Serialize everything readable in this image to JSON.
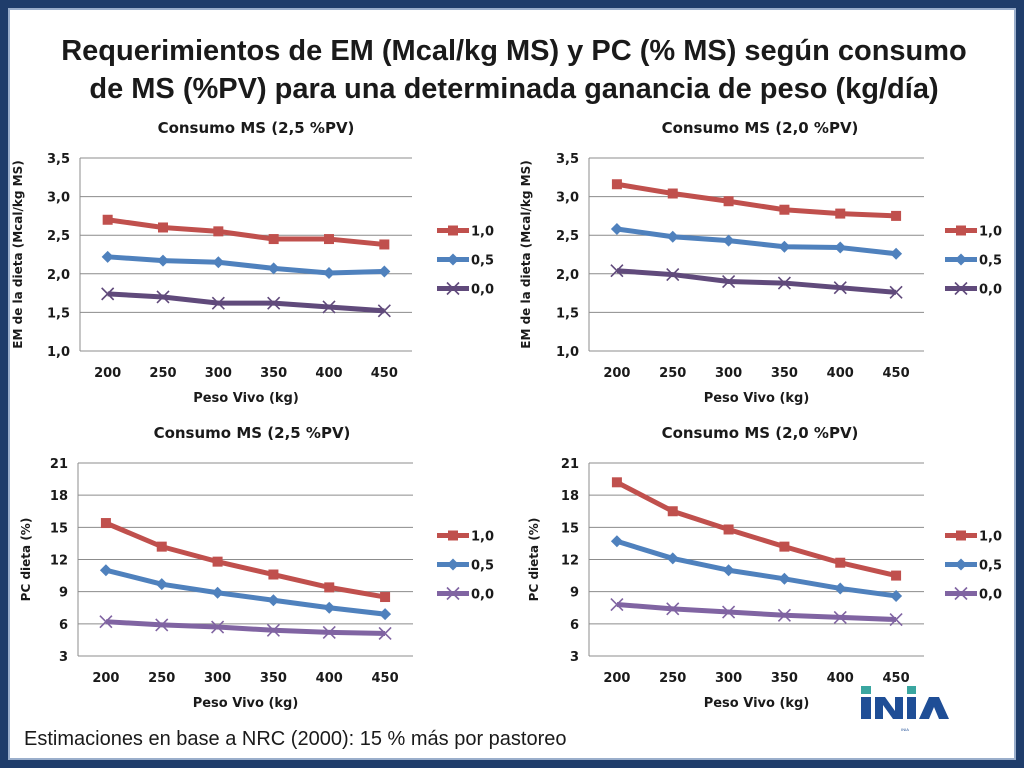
{
  "slide": {
    "title_line1": "Requerimientos de EM (Mcal/kg MS) y PC (% MS) según consumo",
    "title_line2": "de MS (%PV) para una determinada ganancia de peso (kg/día)",
    "footnote": "Estimaciones en base a NRC (2000): 15 % más por pastoreo",
    "logo_text": "INIA"
  },
  "colors": {
    "series_1_0": "#c0504d",
    "series_0_5": "#4f81bd",
    "series_0_0_top": "#604a7b",
    "series_0_0_bottom": "#8064a2",
    "grid": "#8c8c8c",
    "logo_blue": "#1f4e96",
    "logo_teal": "#3aa6a0"
  },
  "chart_data": [
    {
      "id": "em-25",
      "type": "line",
      "title": "Consumo MS (2,5 %PV)",
      "xlabel": "Peso Vivo (kg)",
      "ylabel": "EM de la dieta (Mcal/kg MS)",
      "categories": [
        "200",
        "250",
        "300",
        "350",
        "400",
        "450"
      ],
      "ylim": [
        1.0,
        3.5
      ],
      "yticks": [
        1.0,
        1.5,
        2.0,
        2.5,
        3.0,
        3.5
      ],
      "ytick_labels": [
        "1,0",
        "1,5",
        "2,0",
        "2,5",
        "3,0",
        "3,5"
      ],
      "legend": "right",
      "series": [
        {
          "name": "1,0",
          "marker": "square",
          "color_key": "series_1_0",
          "values": [
            2.7,
            2.6,
            2.55,
            2.45,
            2.45,
            2.38
          ]
        },
        {
          "name": "0,5",
          "marker": "diamond",
          "color_key": "series_0_5",
          "values": [
            2.22,
            2.17,
            2.15,
            2.07,
            2.01,
            2.03
          ]
        },
        {
          "name": "0,0",
          "marker": "x",
          "color_key": "series_0_0_top",
          "values": [
            1.74,
            1.7,
            1.62,
            1.62,
            1.57,
            1.52
          ]
        }
      ]
    },
    {
      "id": "em-20",
      "type": "line",
      "title": "Consumo MS (2,0 %PV)",
      "xlabel": "Peso Vivo (kg)",
      "ylabel": "EM de la dieta (Mcal/kg MS)",
      "categories": [
        "200",
        "250",
        "300",
        "350",
        "400",
        "450"
      ],
      "ylim": [
        1.0,
        3.5
      ],
      "yticks": [
        1.0,
        1.5,
        2.0,
        2.5,
        3.0,
        3.5
      ],
      "ytick_labels": [
        "1,0",
        "1,5",
        "2,0",
        "2,5",
        "3,0",
        "3,5"
      ],
      "legend": "right",
      "series": [
        {
          "name": "1,0",
          "marker": "square",
          "color_key": "series_1_0",
          "values": [
            3.16,
            3.04,
            2.94,
            2.83,
            2.78,
            2.75
          ]
        },
        {
          "name": "0,5",
          "marker": "diamond",
          "color_key": "series_0_5",
          "values": [
            2.58,
            2.48,
            2.43,
            2.35,
            2.34,
            2.26
          ]
        },
        {
          "name": "0,0",
          "marker": "x",
          "color_key": "series_0_0_top",
          "values": [
            2.04,
            1.99,
            1.9,
            1.88,
            1.82,
            1.76
          ]
        }
      ]
    },
    {
      "id": "pc-25",
      "type": "line",
      "title": "Consumo  MS (2,5 %PV)",
      "xlabel": "Peso Vivo (kg)",
      "ylabel": "PC dieta (%)",
      "categories": [
        "200",
        "250",
        "300",
        "350",
        "400",
        "450"
      ],
      "ylim": [
        3,
        21
      ],
      "yticks": [
        3,
        6,
        9,
        12,
        15,
        18,
        21
      ],
      "ytick_labels": [
        "3",
        "6",
        "9",
        "12",
        "15",
        "18",
        "21"
      ],
      "legend": "right",
      "series": [
        {
          "name": "1,0",
          "marker": "square",
          "color_key": "series_1_0",
          "values": [
            15.4,
            13.2,
            11.8,
            10.6,
            9.4,
            8.5
          ]
        },
        {
          "name": "0,5",
          "marker": "diamond",
          "color_key": "series_0_5",
          "values": [
            11.0,
            9.7,
            8.9,
            8.2,
            7.5,
            6.9
          ]
        },
        {
          "name": "0,0",
          "marker": "x",
          "color_key": "series_0_0_bottom",
          "values": [
            6.2,
            5.9,
            5.7,
            5.4,
            5.2,
            5.1
          ]
        }
      ]
    },
    {
      "id": "pc-20",
      "type": "line",
      "title": "Consumo MS (2,0 %PV)",
      "xlabel": "Peso Vivo (kg)",
      "ylabel": "PC dieta (%)",
      "categories": [
        "200",
        "250",
        "300",
        "350",
        "400",
        "450"
      ],
      "ylim": [
        3,
        21
      ],
      "yticks": [
        3,
        6,
        9,
        12,
        15,
        18,
        21
      ],
      "ytick_labels": [
        "3",
        "6",
        "9",
        "12",
        "15",
        "18",
        "21"
      ],
      "legend": "right",
      "series": [
        {
          "name": "1,0",
          "marker": "square",
          "color_key": "series_1_0",
          "values": [
            19.2,
            16.5,
            14.8,
            13.2,
            11.7,
            10.5
          ]
        },
        {
          "name": "0,5",
          "marker": "diamond",
          "color_key": "series_0_5",
          "values": [
            13.7,
            12.1,
            11.0,
            10.2,
            9.3,
            8.6
          ]
        },
        {
          "name": "0,0",
          "marker": "x",
          "color_key": "series_0_0_bottom",
          "values": [
            7.8,
            7.4,
            7.1,
            6.8,
            6.6,
            6.4
          ]
        }
      ]
    }
  ]
}
